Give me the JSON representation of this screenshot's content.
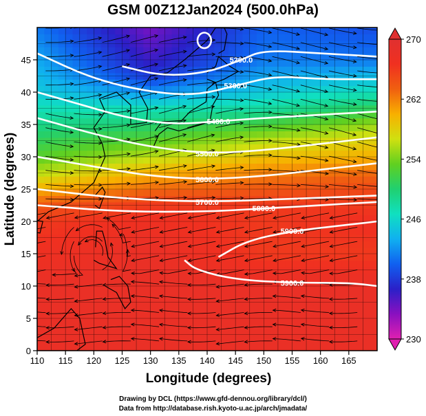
{
  "title": "GSM 00Z12Jan2024 (500.0hPa)",
  "credits": {
    "drawing": "Drawing by DCL (https://www.gfd-dennou.org/library/dcl/)",
    "data_source": "Data from http://database.rish.kyoto-u.ac.jp/arch/jmadata/"
  },
  "chart_data": {
    "type": "heatmap",
    "xlabel": "Longitude (degrees)",
    "ylabel": "Latitude  (degrees)",
    "xlim": [
      110,
      170
    ],
    "ylim": [
      0,
      50
    ],
    "x_ticks": [
      110,
      115,
      120,
      125,
      130,
      135,
      140,
      145,
      150,
      155,
      160,
      165
    ],
    "y_ticks": [
      0,
      5,
      10,
      15,
      20,
      25,
      30,
      35,
      40,
      45
    ],
    "colorbar": {
      "vmin": 230,
      "vmax": 270,
      "tick_labels": [
        230,
        238,
        246,
        254,
        262,
        270
      ],
      "colors": [
        "#e020b0",
        "#8a10c0",
        "#2a20c8",
        "#1060f0",
        "#10b0f0",
        "#10e0c0",
        "#20d070",
        "#60d020",
        "#d0e010",
        "#f8b000",
        "#f06010",
        "#f03020",
        "#e03030"
      ]
    },
    "temperature_field": {
      "rows_lat": [
        0,
        10,
        15,
        20,
        22.5,
        25,
        27.5,
        30,
        32.5,
        35,
        37.5,
        40,
        42.5,
        45,
        50
      ],
      "cols_lon": [
        110,
        130,
        150,
        170
      ],
      "values": [
        [
          268,
          268,
          268,
          268
        ],
        [
          268,
          268,
          268,
          268
        ],
        [
          267,
          268,
          266,
          266
        ],
        [
          266,
          267,
          266,
          267
        ],
        [
          264,
          266,
          266,
          266
        ],
        [
          260,
          263,
          264,
          265
        ],
        [
          256,
          260,
          262,
          263
        ],
        [
          253,
          256,
          259,
          260
        ],
        [
          251,
          253,
          256,
          258
        ],
        [
          249,
          250,
          252,
          255
        ],
        [
          247,
          247,
          248,
          251
        ],
        [
          245,
          242,
          245,
          247
        ],
        [
          244,
          238,
          243,
          244
        ],
        [
          243,
          236,
          241,
          241
        ],
        [
          241,
          234,
          240,
          239
        ]
      ]
    },
    "contours": [
      {
        "label": "5200.0",
        "points": [
          [
            125,
            44
          ],
          [
            132,
            42.5
          ],
          [
            140,
            43
          ],
          [
            146,
            45
          ],
          [
            150,
            46.5
          ],
          [
            160,
            46
          ],
          [
            170,
            45.5
          ]
        ]
      },
      {
        "label": "5300.0",
        "points": [
          [
            110,
            46
          ],
          [
            120,
            42
          ],
          [
            130,
            40
          ],
          [
            138,
            39.5
          ],
          [
            145,
            41
          ],
          [
            152,
            42.5
          ],
          [
            160,
            42
          ],
          [
            170,
            42
          ]
        ]
      },
      {
        "label": "5400.0",
        "points": [
          [
            110,
            40
          ],
          [
            118,
            38
          ],
          [
            126,
            36
          ],
          [
            134,
            35
          ],
          [
            142,
            35.5
          ],
          [
            150,
            36
          ],
          [
            160,
            36.5
          ],
          [
            170,
            37
          ]
        ]
      },
      {
        "label": "5500.0",
        "points": [
          [
            110,
            36
          ],
          [
            120,
            33.5
          ],
          [
            130,
            31.5
          ],
          [
            140,
            30.5
          ],
          [
            150,
            31
          ],
          [
            160,
            32
          ],
          [
            170,
            33
          ]
        ]
      },
      {
        "label": "5600.0",
        "points": [
          [
            110,
            30
          ],
          [
            120,
            28.5
          ],
          [
            130,
            27
          ],
          [
            140,
            26.5
          ],
          [
            150,
            27
          ],
          [
            160,
            28
          ],
          [
            170,
            29
          ]
        ]
      },
      {
        "label": "5700.0",
        "points": [
          [
            110,
            25
          ],
          [
            125,
            23.5
          ],
          [
            140,
            23
          ],
          [
            155,
            23.5
          ],
          [
            170,
            24
          ]
        ]
      },
      {
        "label": "5800.0",
        "points": [
          [
            110,
            22.5
          ],
          [
            125,
            21.5
          ],
          [
            140,
            21.5
          ],
          [
            150,
            22
          ],
          [
            160,
            22.5
          ],
          [
            170,
            23
          ]
        ]
      },
      {
        "label": "5900.0",
        "points": [
          [
            142,
            14.5
          ],
          [
            147,
            17
          ],
          [
            155,
            18.5
          ],
          [
            165,
            19.5
          ],
          [
            170,
            20
          ]
        ]
      },
      {
        "label": "5900.0",
        "points": [
          [
            136,
            14
          ],
          [
            138,
            12.5
          ],
          [
            145,
            11
          ],
          [
            155,
            10.5
          ],
          [
            165,
            10.5
          ],
          [
            170,
            10
          ]
        ]
      }
    ],
    "closed_contour": {
      "center": [
        139.5,
        48
      ],
      "radius_deg": 1.2
    }
  }
}
